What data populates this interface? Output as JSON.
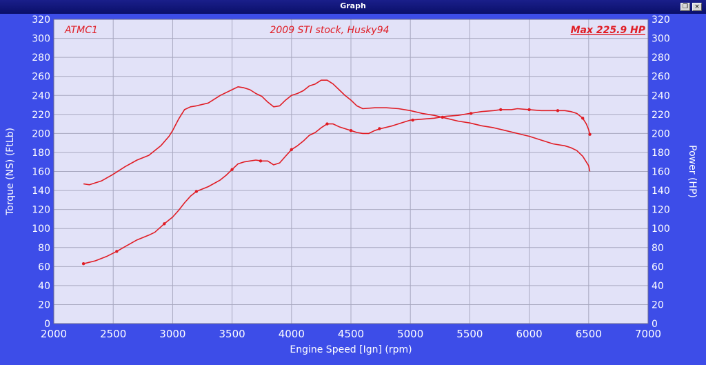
{
  "window": {
    "title": "Graph",
    "restore_glyph": "❐",
    "close_glyph": "×"
  },
  "colors": {
    "frame": "#3d4de8",
    "plot_background": "#e2e2f8",
    "grid": "#a8a8c0",
    "curve": "#e01c24",
    "axis_text": "#ffffff"
  },
  "chart_data": {
    "type": "line",
    "annotations": {
      "left": "ATMC1",
      "center": "2009 STI stock, Husky94",
      "right": "Max 225.9 HP"
    },
    "xlabel": "Engine Speed [Ign] (rpm)",
    "ylabel": "Torque (NS) (FtLb)",
    "y2label": "Power (HP)",
    "xlim": [
      2000,
      7000
    ],
    "ylim": [
      0,
      320
    ],
    "y2lim": [
      0,
      320
    ],
    "x_ticks": [
      "2000",
      "2500",
      "3000",
      "3500",
      "4000",
      "4500",
      "5000",
      "5500",
      "6000",
      "6500",
      "7000"
    ],
    "y_ticks": [
      "0",
      "20",
      "40",
      "60",
      "80",
      "100",
      "120",
      "140",
      "160",
      "180",
      "200",
      "220",
      "240",
      "260",
      "280",
      "300",
      "320"
    ],
    "grid": true,
    "series": [
      {
        "points": [
          [
            2250,
            147
          ],
          [
            2300,
            146
          ],
          [
            2400,
            150
          ],
          [
            2500,
            157
          ],
          [
            2600,
            165
          ],
          [
            2700,
            172
          ],
          [
            2800,
            177
          ],
          [
            2900,
            187
          ],
          [
            2970,
            197
          ],
          [
            3000,
            203
          ],
          [
            3050,
            215
          ],
          [
            3100,
            225
          ],
          [
            3150,
            228
          ],
          [
            3200,
            229
          ],
          [
            3300,
            232
          ],
          [
            3400,
            240
          ],
          [
            3500,
            246
          ],
          [
            3550,
            249
          ],
          [
            3600,
            248
          ],
          [
            3650,
            246
          ],
          [
            3700,
            242
          ],
          [
            3750,
            239
          ],
          [
            3800,
            233
          ],
          [
            3850,
            228
          ],
          [
            3900,
            229
          ],
          [
            3950,
            235
          ],
          [
            4000,
            240
          ],
          [
            4050,
            242
          ],
          [
            4100,
            245
          ],
          [
            4150,
            250
          ],
          [
            4200,
            252
          ],
          [
            4250,
            256
          ],
          [
            4300,
            256
          ],
          [
            4350,
            252
          ],
          [
            4400,
            246
          ],
          [
            4450,
            240
          ],
          [
            4500,
            235
          ],
          [
            4550,
            229
          ],
          [
            4600,
            226
          ],
          [
            4700,
            227
          ],
          [
            4800,
            227
          ],
          [
            4900,
            226
          ],
          [
            5000,
            224
          ],
          [
            5100,
            221
          ],
          [
            5200,
            219
          ],
          [
            5300,
            216
          ],
          [
            5400,
            213
          ],
          [
            5500,
            211
          ],
          [
            5600,
            208
          ],
          [
            5700,
            206
          ],
          [
            5800,
            203
          ],
          [
            5900,
            200
          ],
          [
            6000,
            197
          ],
          [
            6100,
            193
          ],
          [
            6200,
            189
          ],
          [
            6300,
            187
          ],
          [
            6350,
            185
          ],
          [
            6400,
            182
          ],
          [
            6450,
            176
          ],
          [
            6500,
            166
          ],
          [
            6510,
            160
          ]
        ],
        "markers": []
      },
      {
        "points": [
          [
            2250,
            63
          ],
          [
            2350,
            66
          ],
          [
            2450,
            71
          ],
          [
            2530,
            76
          ],
          [
            2600,
            81
          ],
          [
            2700,
            88
          ],
          [
            2800,
            93
          ],
          [
            2850,
            96
          ],
          [
            2930,
            105
          ],
          [
            3000,
            112
          ],
          [
            3050,
            119
          ],
          [
            3100,
            127
          ],
          [
            3150,
            134
          ],
          [
            3200,
            139
          ],
          [
            3300,
            144
          ],
          [
            3400,
            151
          ],
          [
            3450,
            156
          ],
          [
            3500,
            162
          ],
          [
            3550,
            168
          ],
          [
            3600,
            170
          ],
          [
            3650,
            171
          ],
          [
            3700,
            172
          ],
          [
            3750,
            171
          ],
          [
            3800,
            171
          ],
          [
            3850,
            167
          ],
          [
            3900,
            169
          ],
          [
            3950,
            176
          ],
          [
            4000,
            183
          ],
          [
            4050,
            187
          ],
          [
            4100,
            192
          ],
          [
            4150,
            198
          ],
          [
            4200,
            201
          ],
          [
            4250,
            206
          ],
          [
            4300,
            210
          ],
          [
            4350,
            210
          ],
          [
            4400,
            207
          ],
          [
            4450,
            205
          ],
          [
            4500,
            203
          ],
          [
            4550,
            201
          ],
          [
            4600,
            200
          ],
          [
            4650,
            200
          ],
          [
            4700,
            203
          ],
          [
            4750,
            205
          ],
          [
            4850,
            208
          ],
          [
            4950,
            212
          ],
          [
            5000,
            214
          ],
          [
            5100,
            215
          ],
          [
            5200,
            216
          ],
          [
            5300,
            218
          ],
          [
            5400,
            219
          ],
          [
            5500,
            221
          ],
          [
            5600,
            223
          ],
          [
            5700,
            224
          ],
          [
            5760,
            225
          ],
          [
            5850,
            225
          ],
          [
            5900,
            226
          ],
          [
            6000,
            225
          ],
          [
            6100,
            224
          ],
          [
            6200,
            224
          ],
          [
            6250,
            224
          ],
          [
            6300,
            224
          ],
          [
            6350,
            223
          ],
          [
            6400,
            221
          ],
          [
            6450,
            216
          ],
          [
            6480,
            210
          ],
          [
            6500,
            204
          ],
          [
            6510,
            199
          ]
        ],
        "markers": [
          [
            2250,
            63
          ],
          [
            2530,
            76
          ],
          [
            2930,
            105
          ],
          [
            3200,
            139
          ],
          [
            3500,
            162
          ],
          [
            3740,
            171
          ],
          [
            4000,
            183
          ],
          [
            4300,
            210
          ],
          [
            4500,
            203
          ],
          [
            4740,
            205
          ],
          [
            5020,
            214
          ],
          [
            5270,
            217
          ],
          [
            5510,
            221
          ],
          [
            5760,
            225
          ],
          [
            6000,
            225
          ],
          [
            6240,
            224
          ],
          [
            6450,
            216
          ],
          [
            6510,
            199
          ]
        ]
      }
    ]
  }
}
